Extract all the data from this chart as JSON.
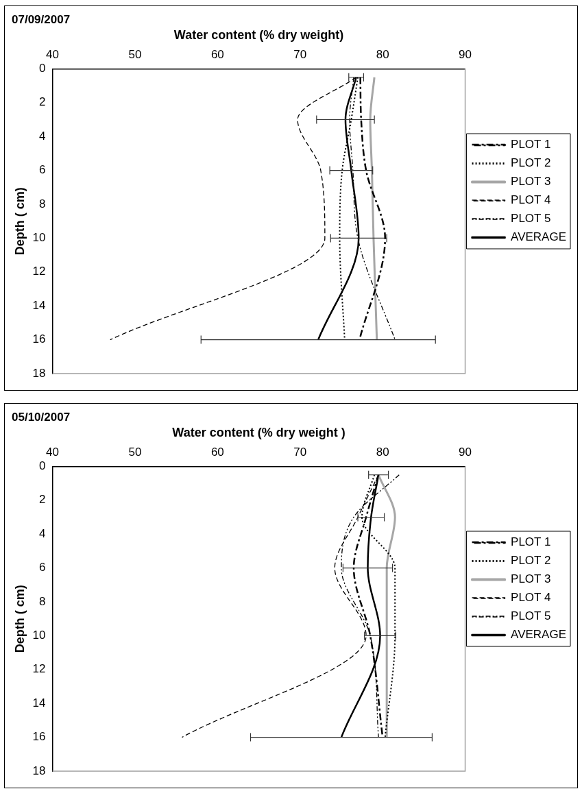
{
  "chart_data": [
    {
      "type": "line",
      "title": "07/09/2007",
      "xlabel": "Water content (% dry weight)",
      "ylabel": "Depth ( cm)",
      "orientation": "horizontal",
      "x": [
        0.5,
        3,
        6,
        10,
        16
      ],
      "series": [
        {
          "name": "PLOT 1",
          "color": "#000000",
          "line_style": "dashdot",
          "values": [
            77.3,
            77.4,
            78.0,
            80.3,
            77.2
          ]
        },
        {
          "name": "PLOT 2",
          "color": "#000000",
          "line_style": "dotted",
          "values": [
            77.0,
            76.2,
            75.1,
            74.8,
            75.4
          ]
        },
        {
          "name": "PLOT 3",
          "color": "#a6a6a6",
          "line_style": "solid",
          "values": [
            79.0,
            78.5,
            78.7,
            78.9,
            79.3
          ]
        },
        {
          "name": "PLOT 4",
          "color": "#000000",
          "line_style": "dashed",
          "values": [
            76.8,
            69.7,
            72.5,
            73.0,
            47.0
          ]
        },
        {
          "name": "PLOT 5",
          "color": "#000000",
          "line_style": "dashdotdot",
          "values": [
            76.5,
            76.0,
            76.4,
            77.0,
            81.5
          ]
        },
        {
          "name": "AVERAGE",
          "color": "#000000",
          "line_style": "solid",
          "values": [
            76.8,
            75.5,
            76.2,
            77.1,
            72.2
          ],
          "errors": [
            0.9,
            3.5,
            2.6,
            3.4,
            14.2
          ]
        }
      ],
      "xlim": [
        40,
        90
      ],
      "xticks": [
        40,
        50,
        60,
        70,
        80,
        90
      ],
      "ylim": [
        18,
        0
      ],
      "yticks": [
        0,
        2,
        4,
        6,
        8,
        10,
        12,
        14,
        16,
        18
      ],
      "grid": false,
      "legend": "right"
    },
    {
      "type": "line",
      "title": "05/10/2007",
      "xlabel": "Water content (% dry weight )",
      "ylabel": "Depth ( cm)",
      "orientation": "horizontal",
      "x": [
        0.5,
        3,
        6,
        10,
        16
      ],
      "series": [
        {
          "name": "PLOT 1",
          "color": "#000000",
          "line_style": "dashdot",
          "values": [
            79.5,
            78.0,
            76.5,
            78.5,
            80.0
          ]
        },
        {
          "name": "PLOT 2",
          "color": "#000000",
          "line_style": "dotted",
          "values": [
            79.0,
            77.5,
            81.5,
            81.5,
            80.3
          ]
        },
        {
          "name": "PLOT 3",
          "color": "#a6a6a6",
          "line_style": "solid",
          "values": [
            79.5,
            81.5,
            80.5,
            80.5,
            80.5
          ]
        },
        {
          "name": "PLOT 4",
          "color": "#000000",
          "line_style": "dashed",
          "values": [
            79.5,
            77.0,
            74.2,
            78.0,
            55.7
          ]
        },
        {
          "name": "PLOT 5",
          "color": "#000000",
          "line_style": "dashdotdot",
          "values": [
            82.0,
            76.5,
            75.0,
            78.5,
            79.5
          ]
        },
        {
          "name": "AVERAGE",
          "color": "#000000",
          "line_style": "solid",
          "values": [
            79.5,
            78.6,
            78.2,
            79.7,
            75.0
          ],
          "errors": [
            1.2,
            1.6,
            3.0,
            1.9,
            11.0
          ]
        }
      ],
      "xlim": [
        40,
        90
      ],
      "xticks": [
        40,
        50,
        60,
        70,
        80,
        90
      ],
      "ylim": [
        18,
        0
      ],
      "yticks": [
        0,
        2,
        4,
        6,
        8,
        10,
        12,
        14,
        16,
        18
      ],
      "grid": false,
      "legend": "right"
    }
  ]
}
